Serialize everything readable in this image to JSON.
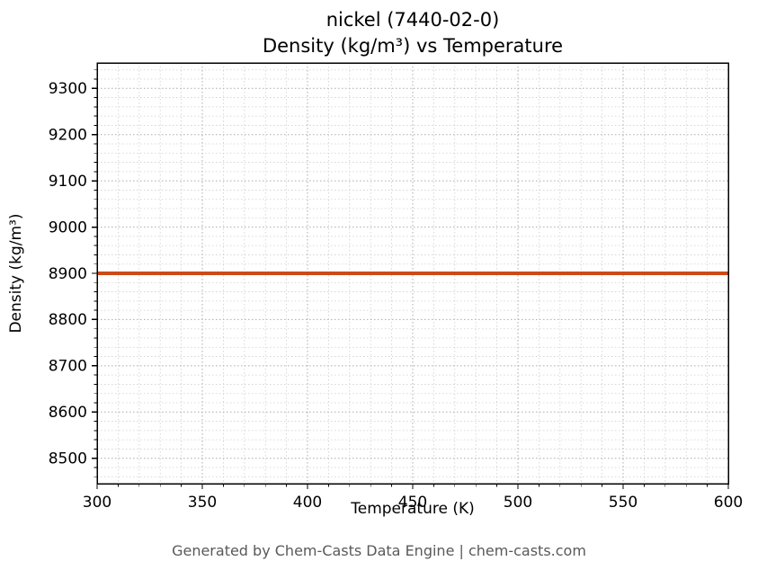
{
  "page": {
    "title_line1": "nickel (7440-02-0)",
    "title_line2": "Density (kg/m³) vs Temperature",
    "footer": "Generated by Chem-Casts Data Engine | chem-casts.com"
  },
  "chart_data": {
    "type": "line",
    "title": "nickel (7440-02-0)\nDensity (kg/m³) vs Temperature",
    "xlabel": "Temperature (K)",
    "ylabel": "Density (kg/m³)",
    "xlim": [
      300,
      600
    ],
    "ylim": [
      8445,
      9355
    ],
    "xticks": [
      300,
      350,
      400,
      450,
      500,
      550,
      600
    ],
    "yticks": [
      8500,
      8600,
      8700,
      8800,
      8900,
      9000,
      9100,
      9200,
      9300
    ],
    "x_minor_step": 10,
    "y_minor_step": 20,
    "grid": true,
    "legend": "none",
    "series": [
      {
        "name": "density",
        "color": "#cc4a18",
        "linewidth": 4,
        "x": [
          300,
          600
        ],
        "y": [
          8900,
          8900
        ]
      }
    ]
  }
}
